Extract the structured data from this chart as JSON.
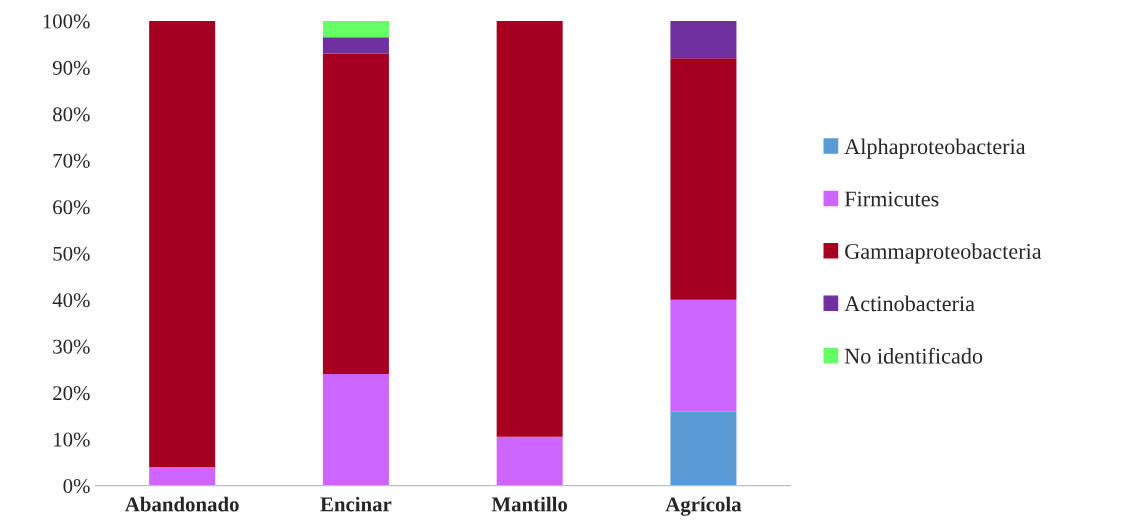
{
  "chart_data": {
    "type": "bar",
    "stacked": true,
    "categories": [
      "Abandonado",
      "Encinar",
      "Mantillo",
      "Agrícola"
    ],
    "series": [
      {
        "name": "Alphaproteobacteria",
        "color": "#5b9bd5",
        "values": [
          0,
          0,
          0,
          16
        ]
      },
      {
        "name": "Firmicutes",
        "color": "#cc66ff",
        "values": [
          4,
          24,
          10.5,
          24
        ]
      },
      {
        "name": "Gammaproteobacteria",
        "color": "#a50021",
        "values": [
          96,
          69,
          89.5,
          52
        ]
      },
      {
        "name": "Actinobacteria",
        "color": "#7030a0",
        "values": [
          0,
          3.5,
          0,
          8
        ]
      },
      {
        "name": "No identificado",
        "color": "#66ff66",
        "values": [
          0,
          3.5,
          0,
          0
        ]
      }
    ],
    "ylim": [
      0,
      100
    ],
    "yticks": [
      {
        "value": 0,
        "label": "0%"
      },
      {
        "value": 10,
        "label": "10%"
      },
      {
        "value": 20,
        "label": "20%"
      },
      {
        "value": 30,
        "label": "30%"
      },
      {
        "value": 40,
        "label": "40%"
      },
      {
        "value": 50,
        "label": "50%"
      },
      {
        "value": 60,
        "label": "60%"
      },
      {
        "value": 70,
        "label": "70%"
      },
      {
        "value": 80,
        "label": "80%"
      },
      {
        "value": 90,
        "label": "90%"
      },
      {
        "value": 100,
        "label": "100%"
      }
    ],
    "grid": false,
    "legend": "right"
  }
}
